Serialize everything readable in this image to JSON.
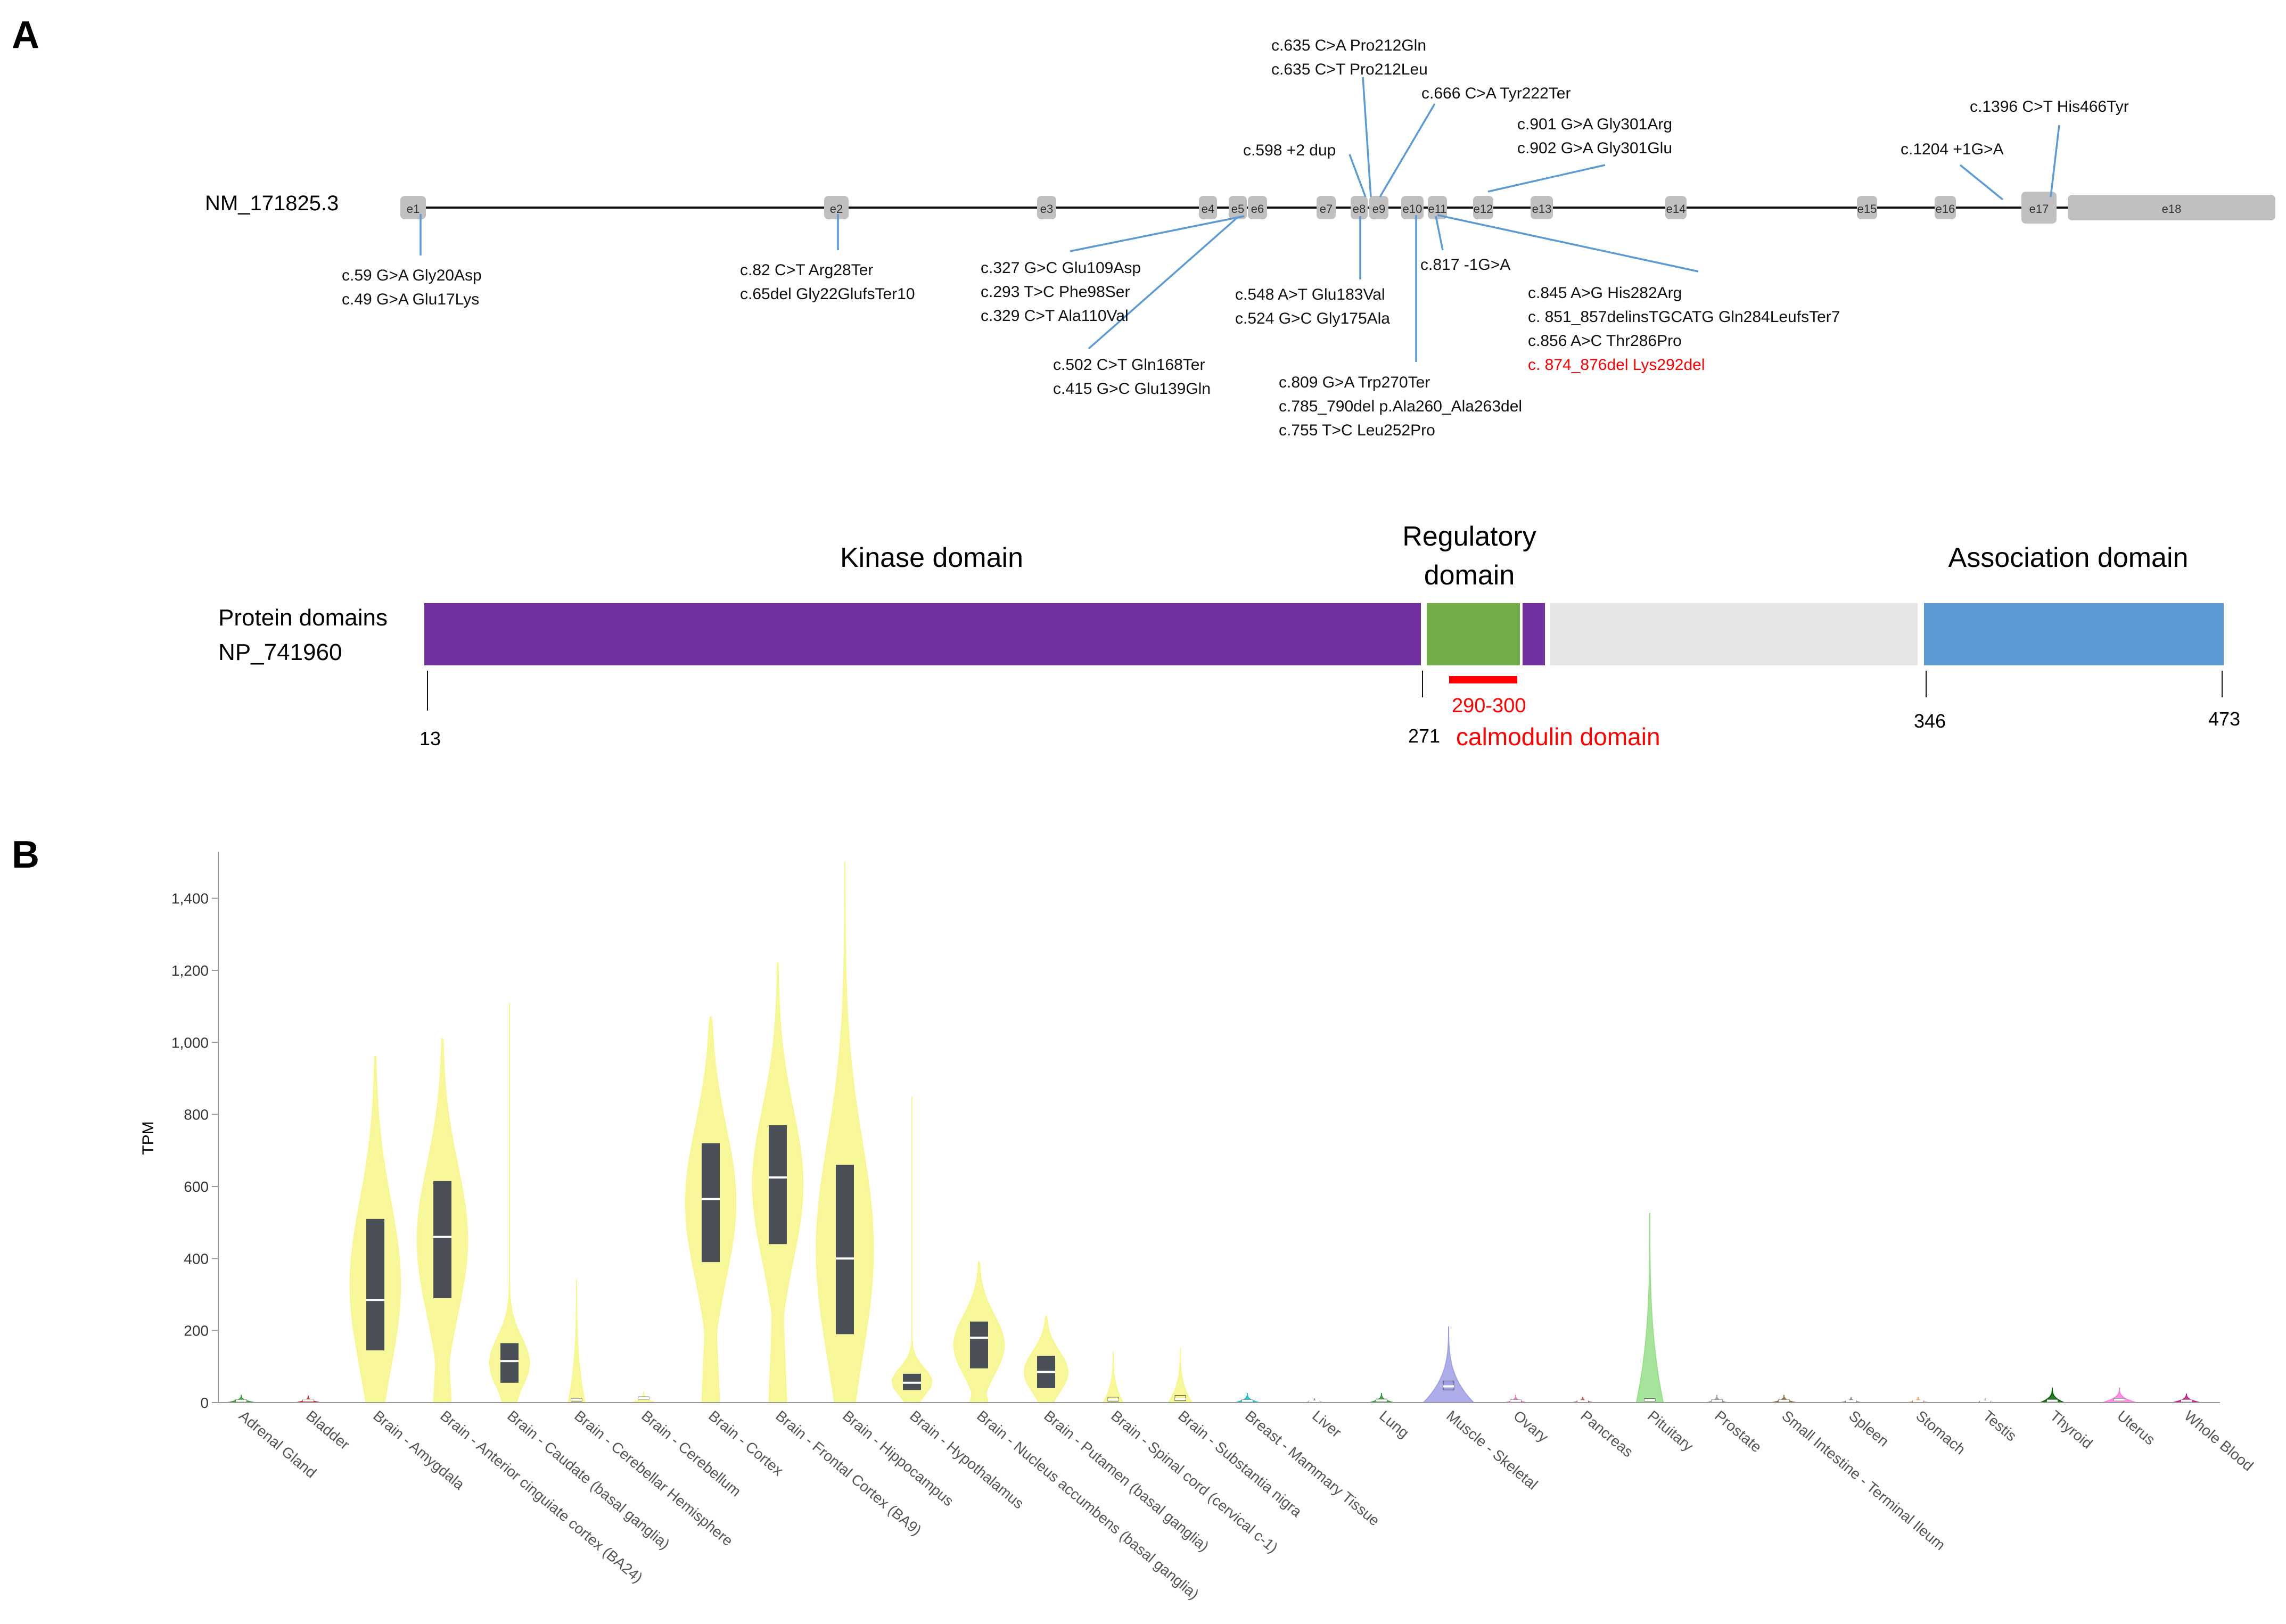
{
  "panel_a": {
    "label": "A",
    "transcript_label": "NM_171825.3",
    "exons": [
      {
        "label": "e1"
      },
      {
        "label": "e2"
      },
      {
        "label": "e3"
      },
      {
        "label": "e4"
      },
      {
        "label": "e5"
      },
      {
        "label": "e6"
      },
      {
        "label": "e7"
      },
      {
        "label": "e8"
      },
      {
        "label": "e9"
      },
      {
        "label": "e10"
      },
      {
        "label": "e11"
      },
      {
        "label": "e12"
      },
      {
        "label": "e13"
      },
      {
        "label": "e14"
      },
      {
        "label": "e15"
      },
      {
        "label": "e16"
      },
      {
        "label": "e17"
      },
      {
        "label": "e18"
      }
    ],
    "variant_groups": [
      {
        "lines": [
          "c.635 C>A Pro212Gln",
          "c.635 C>T Pro212Leu"
        ],
        "highlight": []
      },
      {
        "lines": [
          "c.666 C>A Tyr222Ter"
        ],
        "highlight": []
      },
      {
        "lines": [
          "c.901 G>A Gly301Arg",
          "c.902 G>A Gly301Glu"
        ],
        "highlight": []
      },
      {
        "lines": [
          "c.1396 C>T His466Tyr"
        ],
        "highlight": []
      },
      {
        "lines": [
          "c.598 +2 dup"
        ],
        "highlight": []
      },
      {
        "lines": [
          "c.1204 +1G>A"
        ],
        "highlight": []
      },
      {
        "lines": [
          "c.59 G>A Gly20Asp",
          "c.49 G>A Glu17Lys"
        ],
        "highlight": []
      },
      {
        "lines": [
          "c.82 C>T Arg28Ter",
          "c.65del Gly22GlufsTer10"
        ],
        "highlight": []
      },
      {
        "lines": [
          "c.327 G>C Glu109Asp",
          "c.293 T>C Phe98Ser",
          "c.329 C>T Ala110Val"
        ],
        "highlight": []
      },
      {
        "lines": [
          "c.548 A>T Glu183Val",
          "c.524 G>C Gly175Ala"
        ],
        "highlight": []
      },
      {
        "lines": [
          "c.817 -1G>A"
        ],
        "highlight": []
      },
      {
        "lines": [
          "c.845 A>G  His282Arg",
          "c. 851_857delinsTGCATG Gln284LeufsTer7",
          "c.856 A>C Thr286Pro",
          "c. 874_876del    Lys292del"
        ],
        "highlight": [
          3
        ]
      },
      {
        "lines": [
          "c.502 C>T Gln168Ter",
          "c.415 G>C Glu139Gln"
        ],
        "highlight": []
      },
      {
        "lines": [
          "c.809 G>A Trp270Ter",
          "c.785_790del p.Ala260_Ala263del",
          "c.755 T>C Leu252Pro"
        ],
        "highlight": []
      }
    ],
    "protein_label_line1": "Protein domains",
    "protein_label_line2": "NP_741960",
    "domain_titles": {
      "kinase": "Kinase domain",
      "regulatory_line1": "Regulatory",
      "regulatory_line2": "domain",
      "association": "Association domain"
    },
    "calmodulin": {
      "range": "290-300",
      "label": "calmodulin domain"
    },
    "position_ticks": [
      "13",
      "271",
      "346",
      "473"
    ],
    "colors": {
      "kinase": "#7030a0",
      "regulatory": "#70ad47",
      "unstructured": "#e6e6e6",
      "association": "#5b9bd5",
      "calmodulin": "#ff0000",
      "leader": "#5b9bd5",
      "exon": "#c0c0c0"
    }
  },
  "panel_b": {
    "label": "B",
    "colors": {
      "brain": "#f7f78a",
      "box": "#4a4f57"
    }
  },
  "chart_data": {
    "type": "violin",
    "title": "",
    "xlabel": "",
    "ylabel": "TPM",
    "ylim": [
      0,
      1500
    ],
    "yticks": [
      0,
      200,
      400,
      600,
      800,
      1000,
      1200,
      1400
    ],
    "ytick_labels": [
      "0",
      "200",
      "400",
      "600",
      "800",
      "1,000",
      "1,200",
      "1,400"
    ],
    "categories": [
      "Adrenal Gland",
      "Bladder",
      "Brain - Amygdala",
      "Brain - Anterior cinguiate cortex (BA24)",
      "Brain - Caudate (basal ganglia)",
      "Brain - Cerebellar Hemisphere",
      "Brain - Cerebellum",
      "Brain - Cortex",
      "Brain - Frontal Cortex (BA9)",
      "Brain - Hippocampus",
      "Brain - Hypothalamus",
      "Brain - Nucleus accumbens (basal ganglia)",
      "Brain - Putamen (basal ganglia)",
      "Brain - Spinal cord (cervical c-1)",
      "Brain - Substantia nigra",
      "Breast - Mammary Tissue",
      "Liver",
      "Lung",
      "Muscle - Skeletal",
      "Ovary",
      "Pancreas",
      "Pituitary",
      "Prostate",
      "Small Intestine - Terminal Ileum",
      "Spleen",
      "Stomach",
      "Testis",
      "Thyroid",
      "Uterus",
      "Whole Blood"
    ],
    "colors": [
      "#2ca02c",
      "#d62728",
      "#f7f78a",
      "#f7f78a",
      "#f7f78a",
      "#f7f78a",
      "#f7f78a",
      "#f7f78a",
      "#f7f78a",
      "#f7f78a",
      "#f7f78a",
      "#f7f78a",
      "#f7f78a",
      "#f7f78a",
      "#f7f78a",
      "#17becf",
      "#8c8c8c",
      "#2ca02c",
      "#9f9fe6",
      "#e377c2",
      "#c0504d",
      "#98df8a",
      "#a0a0a0",
      "#8c6d31",
      "#8c8c8c",
      "#ff9f60",
      "#a0a0a0",
      "#006400",
      "#ff7fde",
      "#c71585"
    ],
    "median": [
      5,
      6,
      285,
      460,
      115,
      8,
      12,
      565,
      625,
      400,
      55,
      180,
      85,
      8,
      10,
      5,
      3,
      6,
      45,
      5,
      4,
      7,
      5,
      5,
      4,
      4,
      3,
      5,
      8,
      5
    ],
    "q1": [
      3,
      4,
      145,
      290,
      55,
      4,
      9,
      390,
      440,
      190,
      35,
      95,
      40,
      4,
      5,
      3,
      2,
      4,
      35,
      3,
      2,
      4,
      3,
      3,
      2,
      2,
      2,
      3,
      5,
      3
    ],
    "q3": [
      8,
      9,
      510,
      615,
      165,
      12,
      16,
      720,
      770,
      660,
      80,
      225,
      130,
      15,
      20,
      8,
      5,
      10,
      60,
      8,
      6,
      11,
      8,
      8,
      6,
      6,
      5,
      8,
      12,
      8
    ],
    "max": [
      20,
      18,
      960,
      1010,
      1110,
      340,
      30,
      1070,
      1220,
      1500,
      850,
      390,
      240,
      140,
      150,
      25,
      10,
      25,
      210,
      20,
      15,
      525,
      20,
      20,
      15,
      15,
      10,
      40,
      40,
      25
    ],
    "width": [
      0.4,
      0.35,
      0.75,
      0.75,
      0.6,
      0.25,
      0.35,
      0.75,
      0.75,
      0.85,
      0.6,
      0.75,
      0.65,
      0.3,
      0.35,
      0.35,
      0.25,
      0.35,
      0.75,
      0.3,
      0.3,
      0.4,
      0.3,
      0.35,
      0.3,
      0.3,
      0.25,
      0.35,
      0.5,
      0.4
    ]
  }
}
